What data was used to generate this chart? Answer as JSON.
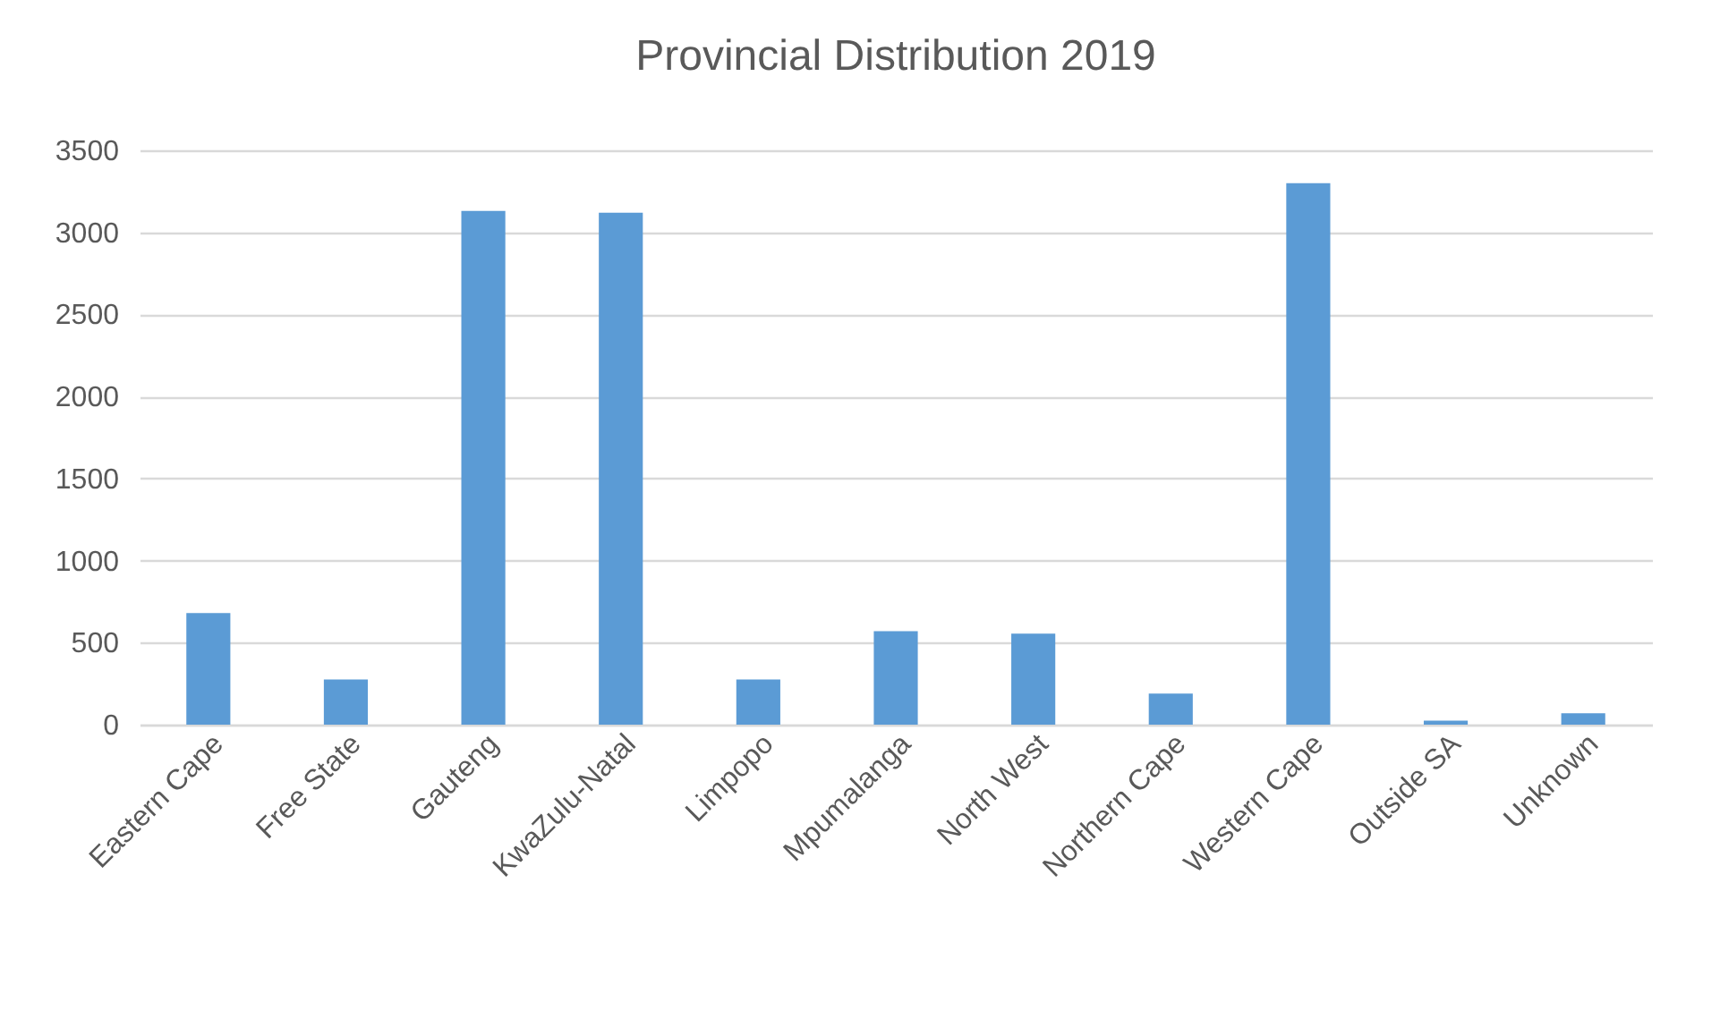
{
  "chart_data": {
    "type": "bar",
    "title": "Provincial Distribution 2019",
    "categories": [
      "Eastern Cape",
      "Free State",
      "Gauteng",
      "KwaZulu-Natal",
      "Limpopo",
      "Mpumalanga",
      "North West",
      "Northern Cape",
      "Western Cape",
      "Outside SA",
      "Unknown"
    ],
    "values": [
      680,
      275,
      3130,
      3120,
      275,
      570,
      555,
      190,
      3300,
      25,
      70
    ],
    "color": "#5b9bd5",
    "ylim": [
      0,
      3500
    ],
    "yticks": [
      0,
      500,
      1000,
      1500,
      2000,
      2500,
      3000,
      3500
    ],
    "grid": "y"
  }
}
